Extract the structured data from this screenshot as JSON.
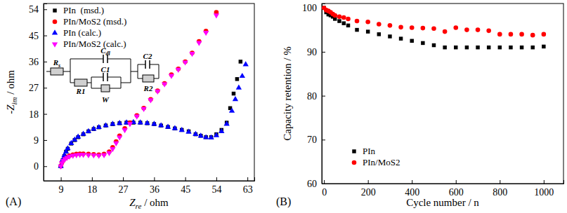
{
  "chart_data": [
    {
      "type": "scatter",
      "title": "(A)",
      "x_label": "Zre / ohm",
      "y_label": "-Zim / ohm",
      "xlim": [
        4,
        65
      ],
      "ylim": [
        -5,
        56
      ],
      "xticks": [
        9,
        18,
        27,
        36,
        45,
        54,
        63
      ],
      "yticks": [
        0,
        9,
        18,
        27,
        36,
        45,
        54
      ],
      "legend": "upper left",
      "annotations": [
        "Rs",
        "Cdl",
        "R1",
        "C1",
        "W",
        "C2",
        "R2"
      ],
      "series": [
        {
          "name": "PIn  (msd.)",
          "color": "#000000",
          "marker": "square",
          "x": [
            9,
            9.5,
            10,
            10.5,
            11,
            12,
            13,
            14,
            15.5,
            17,
            18.5,
            20,
            22,
            24,
            26,
            28,
            30,
            32,
            34,
            36,
            38,
            40,
            42,
            44,
            46,
            48,
            49.5,
            51,
            52.5,
            54,
            55.5,
            57,
            58,
            59,
            60,
            61
          ],
          "values": [
            0,
            2,
            3.5,
            5,
            6,
            7.8,
            9,
            10,
            11,
            12,
            12.8,
            13.4,
            14,
            14.5,
            14.8,
            15,
            15,
            15,
            14.8,
            14.5,
            14,
            13.5,
            13,
            12.5,
            12,
            11,
            10.5,
            10,
            10,
            11,
            12.5,
            15,
            20,
            25,
            30,
            36
          ]
        },
        {
          "name": "PIn/MoS2 (msd.)",
          "color": "#ff0000",
          "marker": "circle",
          "x": [
            9,
            9.3,
            9.7,
            10.2,
            10.8,
            11.5,
            12.5,
            13.5,
            14.5,
            15.5,
            17,
            18.5,
            20,
            21.5,
            23,
            24,
            25,
            26,
            27.5,
            29,
            31,
            33,
            35,
            37,
            39,
            41,
            43,
            45,
            47,
            49,
            51,
            54
          ],
          "values": [
            0,
            1.2,
            2,
            2.7,
            3.2,
            3.6,
            4,
            4.2,
            4.3,
            4.3,
            4.2,
            4.1,
            4,
            4.2,
            5,
            6.5,
            8.5,
            10.5,
            13,
            15,
            17.5,
            20,
            23,
            26,
            28.5,
            31.5,
            33.5,
            36,
            39,
            43,
            46.5,
            53
          ]
        },
        {
          "name": "PIn (calc.)",
          "color": "#0000ff",
          "marker": "triangle",
          "x": [
            9,
            9.5,
            10,
            10.5,
            11,
            12,
            13,
            14,
            15.5,
            17,
            18.5,
            20,
            22,
            24,
            26,
            28,
            30,
            32,
            34,
            36,
            38,
            40,
            42,
            44,
            46,
            48,
            49.5,
            51,
            52.5,
            54,
            55.5,
            57,
            58.5,
            59.5,
            60.5,
            61.5,
            62.5
          ],
          "values": [
            0,
            2.2,
            3.7,
            5,
            6.1,
            7.9,
            9.1,
            10.1,
            11.1,
            12,
            12.8,
            13.4,
            14,
            14.5,
            14.8,
            15,
            15.1,
            15,
            14.8,
            14.5,
            14,
            13.5,
            13,
            12.4,
            11.8,
            11,
            10.4,
            9.9,
            9.8,
            10.6,
            12,
            14.5,
            19,
            23,
            27,
            31,
            35
          ]
        },
        {
          "name": "PIn/MoS2 (calc.)",
          "color": "#ff00ff",
          "marker": "triangle-down",
          "x": [
            9,
            9.3,
            9.7,
            10.2,
            10.8,
            11.5,
            12.5,
            13.5,
            14.5,
            15.5,
            17,
            18.5,
            20,
            21.5,
            23,
            24,
            25,
            26,
            27.5,
            29,
            31,
            33,
            35,
            37,
            39,
            41,
            43,
            45,
            47,
            49,
            51,
            54
          ],
          "values": [
            0,
            1.1,
            1.9,
            2.5,
            3,
            3.4,
            3.7,
            3.9,
            4,
            4,
            3.9,
            3.8,
            3.7,
            3.9,
            4.6,
            6,
            8,
            10,
            12.5,
            14.6,
            17.2,
            19.8,
            22.8,
            25.8,
            28.3,
            31.2,
            33.3,
            35.8,
            38.8,
            42.5,
            46,
            52
          ]
        }
      ]
    },
    {
      "type": "scatter",
      "title": "(B)",
      "x_label": "Cycle number / n",
      "y_label": "Capacity retention / %",
      "xlim": [
        -10,
        1090
      ],
      "ylim": [
        60,
        101
      ],
      "xticks": [
        0,
        200,
        400,
        600,
        800,
        1000
      ],
      "yticks": [
        60,
        70,
        80,
        90,
        100
      ],
      "legend": "lower left",
      "series": [
        {
          "name": "PIn",
          "color": "#000000",
          "marker": "square",
          "x": [
            0,
            10,
            20,
            30,
            40,
            50,
            70,
            90,
            110,
            150,
            200,
            250,
            300,
            350,
            400,
            450,
            500,
            550,
            600,
            650,
            700,
            750,
            800,
            850,
            900,
            950,
            1000
          ],
          "values": [
            100,
            99,
            98.5,
            98.3,
            98,
            97.5,
            97,
            96.5,
            96,
            95,
            94.6,
            94,
            93.5,
            93,
            92.5,
            92,
            91.5,
            91,
            91,
            91,
            91,
            91,
            91,
            91,
            91,
            91,
            91.2
          ]
        },
        {
          "name": "PIn/MoS2",
          "color": "#ff0000",
          "marker": "circle",
          "x": [
            0,
            10,
            20,
            30,
            40,
            50,
            70,
            90,
            110,
            150,
            200,
            250,
            300,
            350,
            400,
            450,
            500,
            550,
            600,
            650,
            700,
            750,
            800,
            850,
            900,
            950,
            1000
          ],
          "values": [
            100,
            99.5,
            99.3,
            99,
            98.6,
            98.3,
            98,
            97.8,
            97.5,
            97,
            96.8,
            96.3,
            96,
            95.6,
            95.5,
            95.4,
            95.3,
            94.6,
            95.5,
            95,
            95,
            94.8,
            94,
            94,
            94,
            93.8,
            94
          ]
        }
      ]
    }
  ]
}
